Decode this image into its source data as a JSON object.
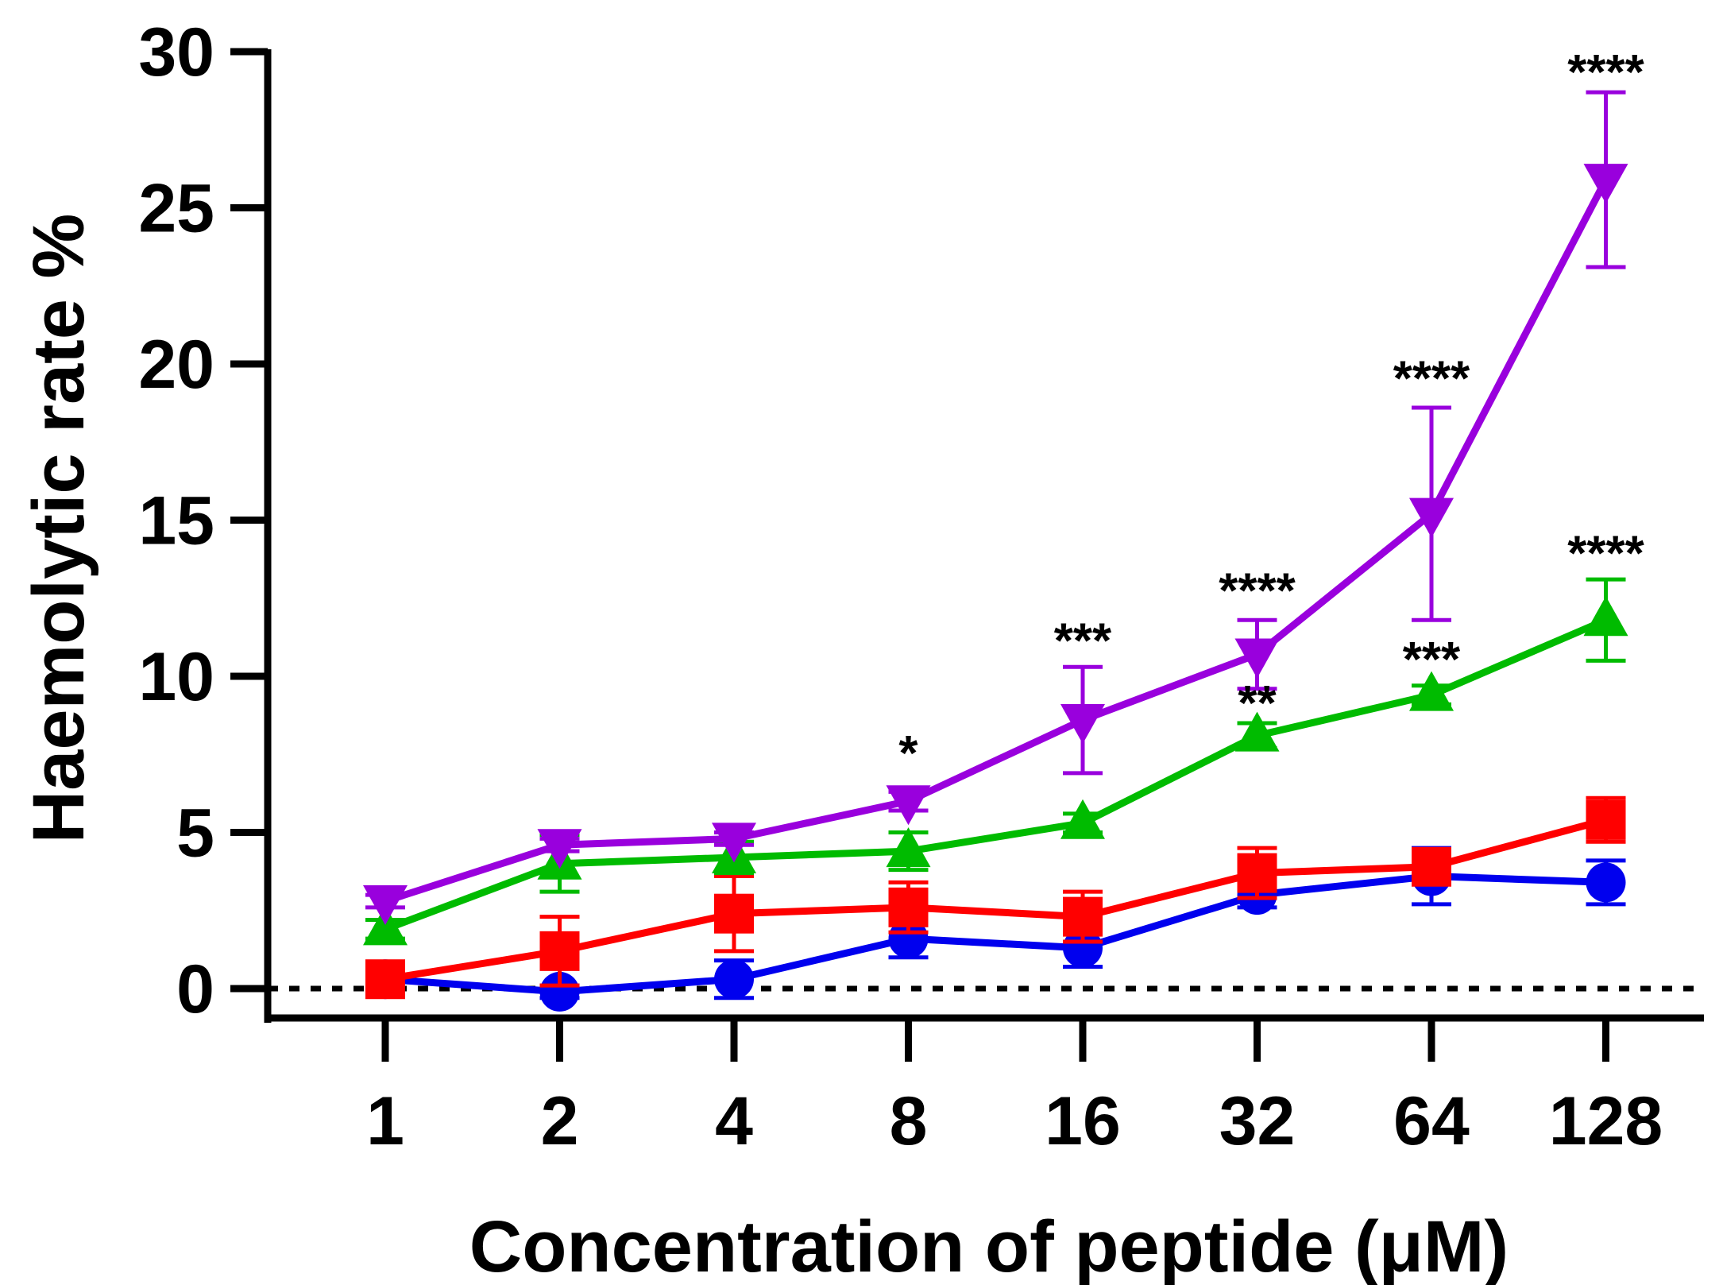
{
  "chart_data": {
    "type": "line",
    "title": "",
    "xlabel": "Concentration of peptide (μM)",
    "ylabel": "Haemolytic rate %",
    "x_scale": "log2",
    "categories": [
      "1",
      "2",
      "4",
      "8",
      "16",
      "32",
      "64",
      "128"
    ],
    "yticks": [
      "0",
      "5",
      "10",
      "15",
      "20",
      "25",
      "30"
    ],
    "ylim": [
      -1,
      30
    ],
    "grid": false,
    "legend": "none",
    "reference_line": {
      "y": 0,
      "style": "dotted"
    },
    "series": [
      {
        "color": "#0000ee",
        "marker": "circle",
        "values": [
          0.3,
          -0.1,
          0.3,
          1.6,
          1.3,
          3.0,
          3.6,
          3.4
        ],
        "error": [
          0.1,
          0.2,
          0.6,
          0.6,
          0.6,
          0.4,
          0.9,
          0.7
        ]
      },
      {
        "color": "#ff0000",
        "marker": "square",
        "values": [
          0.3,
          1.2,
          2.4,
          2.6,
          2.3,
          3.7,
          3.9,
          5.4
        ],
        "error": [
          0.2,
          1.1,
          1.2,
          0.8,
          0.8,
          0.8,
          0.4,
          0.7
        ]
      },
      {
        "color": "#00bb00",
        "marker": "triangle-up",
        "values": [
          1.9,
          4.0,
          4.2,
          4.4,
          5.3,
          8.1,
          9.4,
          11.8
        ],
        "error": [
          0.3,
          0.9,
          0.5,
          0.6,
          0.3,
          0.4,
          0.3,
          1.3
        ]
      },
      {
        "color": "#9900dd",
        "marker": "triangle-down",
        "values": [
          2.8,
          4.6,
          4.8,
          6.0,
          8.6,
          10.7,
          15.2,
          25.9
        ],
        "error": [
          0.2,
          0.2,
          0.2,
          0.3,
          1.7,
          1.1,
          3.4,
          2.8
        ]
      }
    ],
    "annotations": [
      {
        "x": "8",
        "y": 7.0,
        "text": "*"
      },
      {
        "x": "16",
        "y": 10.6,
        "text": "***"
      },
      {
        "x": "32",
        "y": 12.2,
        "text": "****"
      },
      {
        "x": "32",
        "y": 8.6,
        "text": "**"
      },
      {
        "x": "64",
        "y": 19.0,
        "text": "****"
      },
      {
        "x": "64",
        "y": 10.0,
        "text": "***"
      },
      {
        "x": "128",
        "y": 28.8,
        "text": "****"
      },
      {
        "x": "128",
        "y": 13.4,
        "text": "****"
      }
    ]
  }
}
